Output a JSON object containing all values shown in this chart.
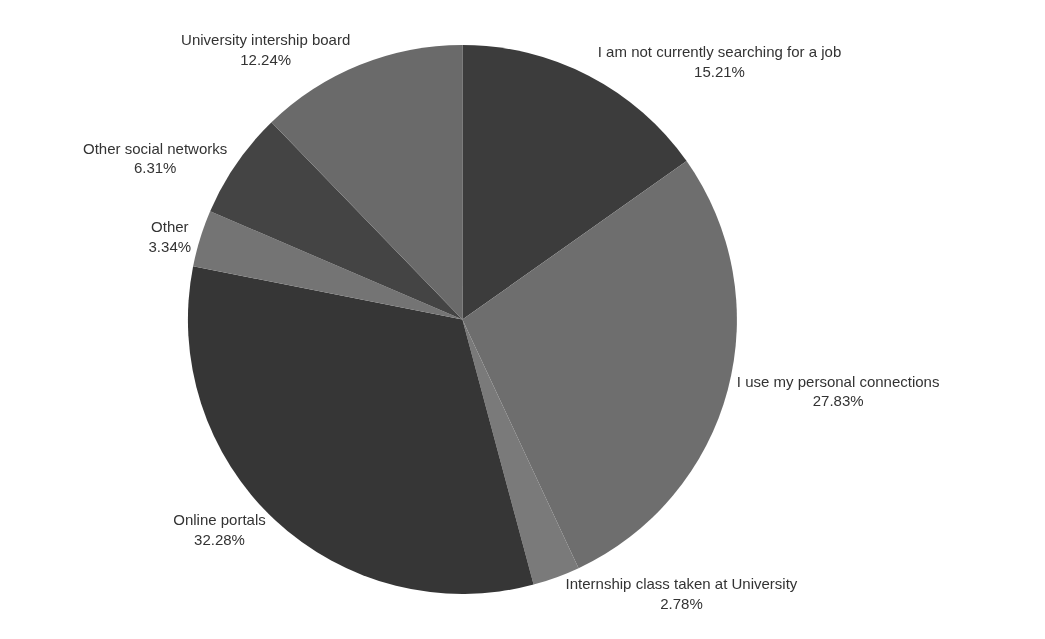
{
  "chart_data": {
    "type": "pie",
    "categories": [
      "I am not currently searching for a job",
      "I use my personal connections",
      "Internship class taken at University",
      "Online portals",
      "Other",
      "Other social networks",
      "University intership board"
    ],
    "values": [
      15.21,
      27.83,
      2.78,
      32.28,
      3.34,
      6.31,
      12.24
    ],
    "colors": [
      "#3c3c3c",
      "#6e6e6e",
      "#7a7a7a",
      "#363636",
      "#747474",
      "#444444",
      "#6a6a6a"
    ],
    "value_labels": [
      "15.21%",
      "27.83%",
      "2.78%",
      "32.28%",
      "3.34%",
      "6.31%",
      "12.24%"
    ]
  }
}
